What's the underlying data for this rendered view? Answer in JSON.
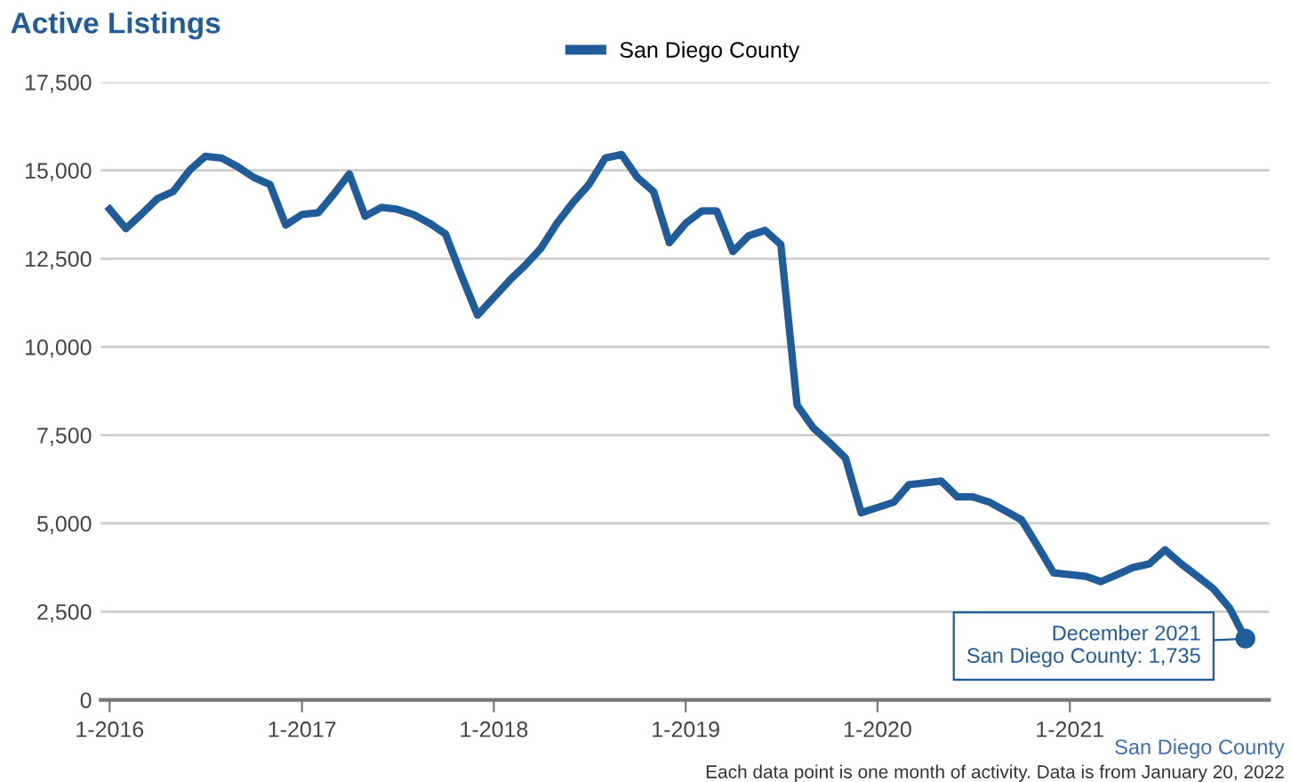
{
  "chart_data": {
    "type": "line",
    "title": "Active Listings",
    "x": [
      "2016-01",
      "2016-02",
      "2016-03",
      "2016-04",
      "2016-05",
      "2016-06",
      "2016-07",
      "2016-08",
      "2016-09",
      "2016-10",
      "2016-11",
      "2016-12",
      "2017-01",
      "2017-02",
      "2017-03",
      "2017-04",
      "2017-05",
      "2017-06",
      "2017-07",
      "2017-08",
      "2017-09",
      "2017-10",
      "2017-11",
      "2017-12",
      "2018-01",
      "2018-02",
      "2018-03",
      "2018-04",
      "2018-05",
      "2018-06",
      "2018-07",
      "2018-08",
      "2018-09",
      "2018-10",
      "2018-11",
      "2018-12",
      "2019-01",
      "2019-02",
      "2019-03",
      "2019-04",
      "2019-05",
      "2019-06",
      "2019-07",
      "2019-08",
      "2019-09",
      "2019-10",
      "2019-11",
      "2019-12",
      "2020-01",
      "2020-02",
      "2020-03",
      "2020-04",
      "2020-05",
      "2020-06",
      "2020-07",
      "2020-08",
      "2020-09",
      "2020-10",
      "2020-11",
      "2020-12",
      "2021-01",
      "2021-02",
      "2021-03",
      "2021-04",
      "2021-05",
      "2021-06",
      "2021-07",
      "2021-08",
      "2021-09",
      "2021-10",
      "2021-11",
      "2021-12"
    ],
    "series": [
      {
        "name": "San Diego County",
        "color": "#1f5c99",
        "values": [
          13900,
          13350,
          13750,
          14200,
          14400,
          15000,
          15400,
          15350,
          15100,
          14800,
          14600,
          13450,
          13750,
          13800,
          14300,
          14900,
          13700,
          13950,
          13900,
          13750,
          13500,
          13200,
          12000,
          10900,
          11400,
          11900,
          12300,
          12800,
          13500,
          14100,
          14600,
          15350,
          15450,
          14800,
          14400,
          12950,
          13500,
          13850,
          13850,
          12700,
          13150,
          13300,
          12900,
          8350,
          7700,
          7300,
          6850,
          5300,
          5450,
          5600,
          6100,
          6150,
          6200,
          5750,
          5750,
          5600,
          5350,
          5100,
          4350,
          3600,
          3550,
          3500,
          3350,
          3550,
          3750,
          3850,
          4250,
          3850,
          3500,
          3150,
          2600,
          1735
        ]
      }
    ],
    "xlim": [
      "2015-12-15",
      "2022-01-15"
    ],
    "xticks": [
      {
        "value": "2016-01",
        "label": "1-2016"
      },
      {
        "value": "2017-01",
        "label": "1-2017"
      },
      {
        "value": "2018-01",
        "label": "1-2018"
      },
      {
        "value": "2019-01",
        "label": "1-2019"
      },
      {
        "value": "2020-01",
        "label": "1-2020"
      },
      {
        "value": "2021-01",
        "label": "1-2021"
      }
    ],
    "ylim": [
      0,
      17500
    ],
    "yticks": [
      {
        "value": 0,
        "label": "0"
      },
      {
        "value": 2500,
        "label": "2,500"
      },
      {
        "value": 5000,
        "label": "5,000"
      },
      {
        "value": 7500,
        "label": "7,500"
      },
      {
        "value": 10000,
        "label": "10,000"
      },
      {
        "value": 12500,
        "label": "12,500"
      },
      {
        "value": 15000,
        "label": "15,000"
      },
      {
        "value": 17500,
        "label": "17,500"
      }
    ],
    "grid": "y",
    "legend": "top",
    "marker": "none",
    "line_style": "solid",
    "annotations": [
      {
        "text": "December 2021\nSan Diego County: 1,735",
        "x": "2021-12",
        "y": 1735
      },
      "San Diego County",
      "Each data point is one month of activity. Data is from January 20, 2022"
    ]
  }
}
